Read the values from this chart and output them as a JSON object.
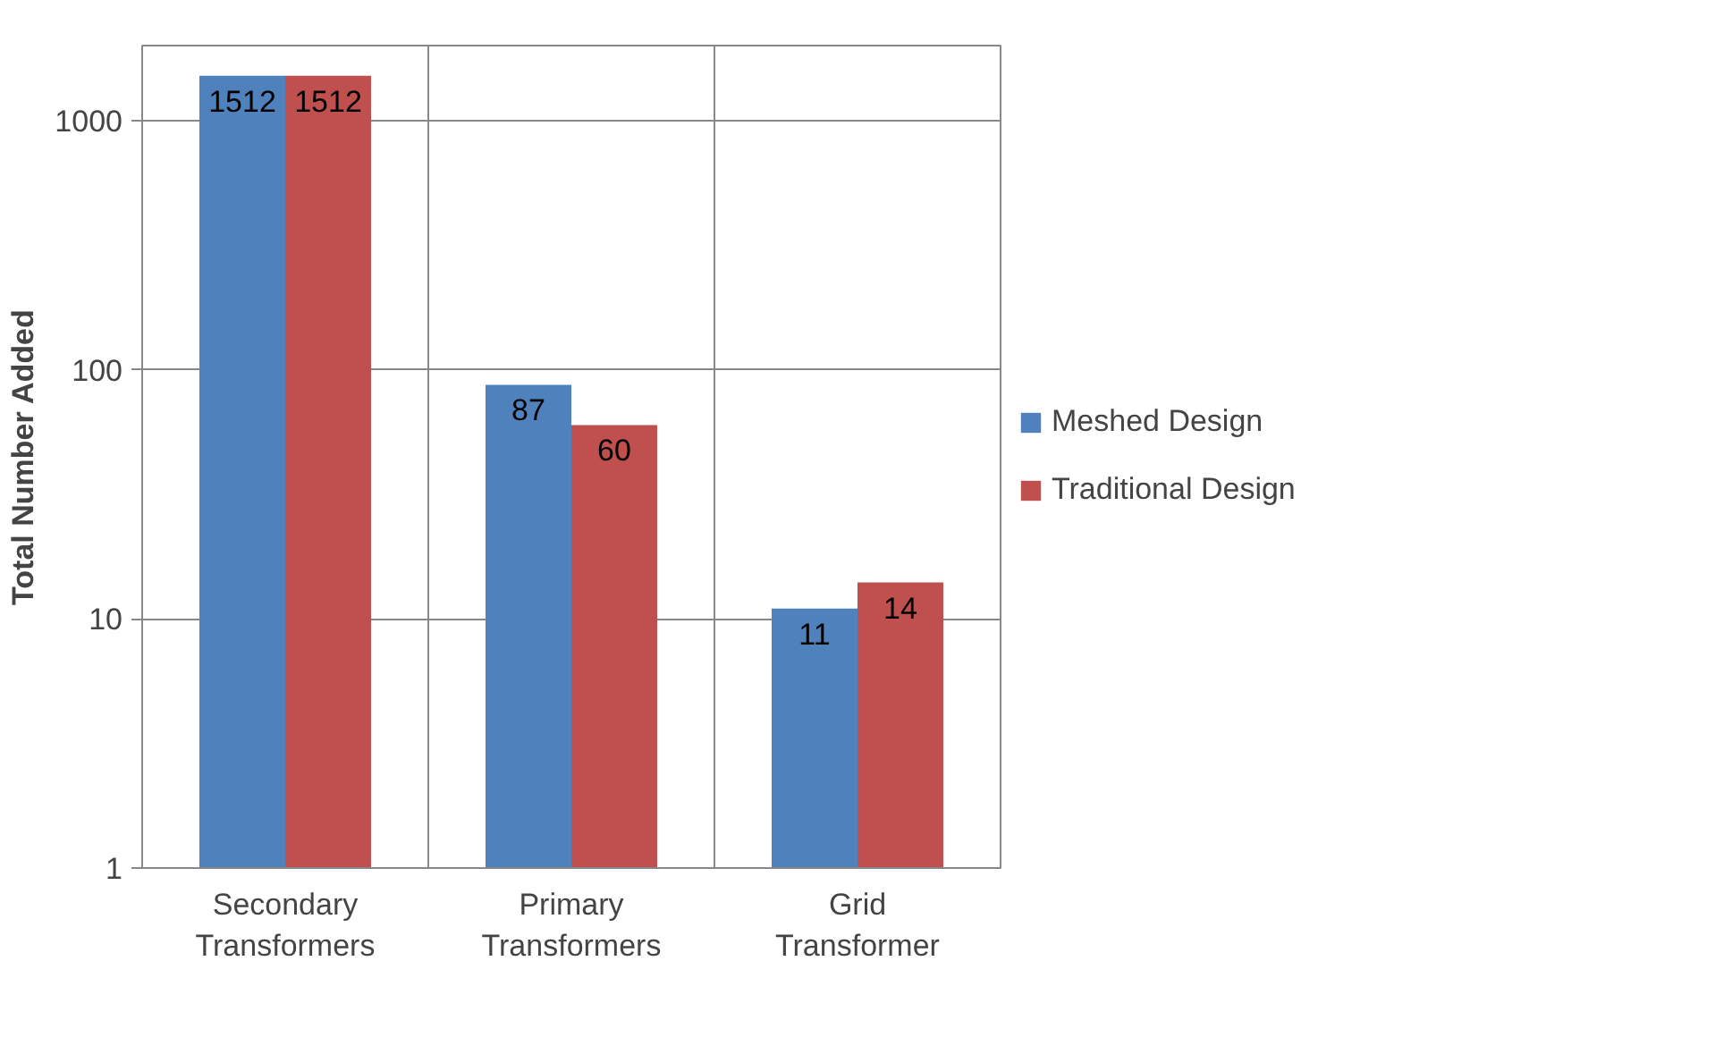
{
  "chart_data": {
    "type": "bar",
    "ylabel": "Total Number Added",
    "categories": [
      "Secondary\nTransformers",
      "Primary\nTransformers",
      "Grid\nTransformer"
    ],
    "series": [
      {
        "name": "Meshed Design",
        "color": "#4f81bd",
        "values": [
          1512,
          87,
          11
        ]
      },
      {
        "name": "Traditional Design",
        "color": "#c0504d",
        "values": [
          1512,
          60,
          14
        ]
      }
    ],
    "log": true,
    "ylim": [
      1,
      2000
    ],
    "yticks": [
      1,
      10,
      100,
      1000
    ],
    "grid": true,
    "legend": "right",
    "data_labels": true
  }
}
